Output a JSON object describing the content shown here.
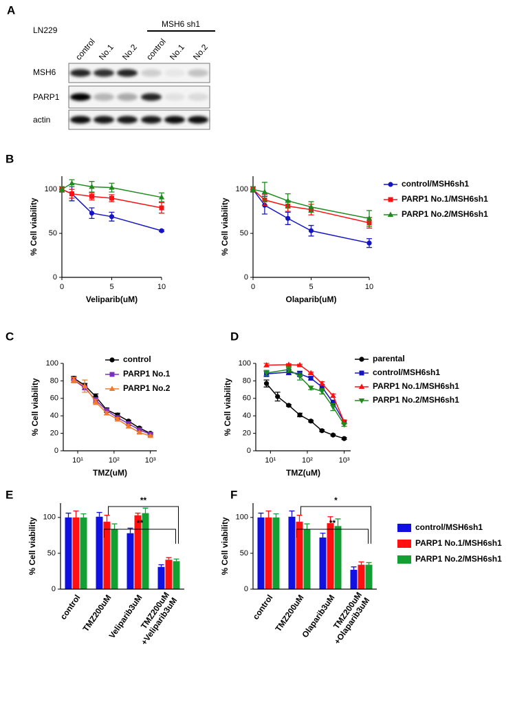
{
  "panel_labels": [
    "A",
    "B",
    "C",
    "D",
    "E",
    "F"
  ],
  "blot": {
    "cell_line": "LN229",
    "group_label": "MSH6 sh1",
    "lanes": [
      "control",
      "No.1",
      "No.2",
      "control",
      "No.1",
      "No.2"
    ],
    "rows": [
      "MSH6",
      "PARP1",
      "actin"
    ]
  },
  "chart_data": [
    {
      "type": "line",
      "x_label": "Veliparib(uM)",
      "y_label": "% Cell viability",
      "x": [
        0,
        1,
        3,
        5,
        10
      ],
      "xlim": [
        0,
        10
      ],
      "xticks": [
        0,
        5,
        10
      ],
      "ylim": [
        0,
        115
      ],
      "yticks": [
        0,
        50,
        100
      ],
      "legend": false,
      "series": [
        {
          "name": "control/MSH6sh1",
          "color": "#1515c0",
          "marker": "circle",
          "values": [
            100,
            95,
            73,
            69,
            53
          ],
          "error": [
            3,
            8,
            6,
            5,
            1
          ]
        },
        {
          "name": "PARP1 No.1/MSH6sh1",
          "color": "#ff1010",
          "marker": "square",
          "values": [
            100,
            95,
            92,
            90,
            79
          ],
          "error": [
            3,
            5,
            4,
            4,
            6
          ]
        },
        {
          "name": "PARP1 No.2/MSH6sh1",
          "color": "#1e8a1e",
          "marker": "triangle",
          "values": [
            100,
            107,
            103,
            102,
            91
          ],
          "error": [
            3,
            4,
            6,
            5,
            5
          ]
        }
      ]
    },
    {
      "type": "line",
      "x_label": "Olaparib(uM)",
      "y_label": "% Cell viability",
      "x": [
        0,
        1,
        3,
        5,
        10
      ],
      "xlim": [
        0,
        10
      ],
      "xticks": [
        0,
        5,
        10
      ],
      "ylim": [
        0,
        115
      ],
      "yticks": [
        0,
        50,
        100
      ],
      "legend": "right",
      "series": [
        {
          "name": "control/MSH6sh1",
          "color": "#1515c0",
          "marker": "circle",
          "values": [
            100,
            82,
            67,
            53,
            39
          ],
          "error": [
            3,
            10,
            7,
            6,
            5
          ]
        },
        {
          "name": "PARP1 No.1/MSH6sh1",
          "color": "#ff1010",
          "marker": "square",
          "values": [
            100,
            88,
            81,
            77,
            62
          ],
          "error": [
            3,
            6,
            6,
            6,
            6
          ]
        },
        {
          "name": "PARP1 No.2/MSH6sh1",
          "color": "#1e8a1e",
          "marker": "triangle",
          "values": [
            100,
            97,
            87,
            80,
            67
          ],
          "error": [
            3,
            11,
            8,
            6,
            9
          ]
        }
      ]
    },
    {
      "type": "line",
      "x_label": "TMZ(uM)",
      "y_label": "% Cell viability",
      "xscale": "log",
      "x": [
        7.8,
        15.6,
        31.3,
        62.5,
        125,
        250,
        500,
        1000
      ],
      "xlim": [
        4,
        1500
      ],
      "xticks": [
        {
          "value": 10,
          "label": "10¹"
        },
        {
          "value": 100,
          "label": "10²"
        },
        {
          "value": 1000,
          "label": "10³"
        }
      ],
      "ylim": [
        0,
        100
      ],
      "yticks": [
        0,
        20,
        40,
        60,
        80,
        100
      ],
      "legend": "upper right",
      "series": [
        {
          "name": "control",
          "color": "#000000",
          "marker": "circle",
          "values": [
            83,
            75,
            62,
            47,
            41,
            34,
            26,
            20
          ],
          "error": [
            2,
            2,
            3,
            2,
            2,
            1,
            1,
            1
          ]
        },
        {
          "name": "PARP1 No.1",
          "color": "#7b2fbf",
          "marker": "square",
          "values": [
            81,
            72,
            58,
            46,
            38,
            31,
            24,
            19
          ],
          "error": [
            3,
            2,
            3,
            2,
            2,
            2,
            1,
            1
          ]
        },
        {
          "name": "PARP1 No.2",
          "color": "#f47a2a",
          "marker": "triangle",
          "values": [
            81,
            74,
            56,
            43,
            36,
            28,
            21,
            17
          ],
          "error": [
            3,
            7,
            3,
            2,
            2,
            2,
            1,
            1
          ]
        }
      ]
    },
    {
      "type": "line",
      "x_label": "TMZ(uM)",
      "y_label": "% Cell viability",
      "xscale": "log",
      "x": [
        7.8,
        15.6,
        31.3,
        62.5,
        125,
        250,
        500,
        1000
      ],
      "xlim": [
        4,
        1500
      ],
      "xticks": [
        {
          "value": 10,
          "label": "10¹"
        },
        {
          "value": 100,
          "label": "10²"
        },
        {
          "value": 1000,
          "label": "10³"
        }
      ],
      "ylim": [
        0,
        100
      ],
      "yticks": [
        0,
        20,
        40,
        60,
        80,
        100
      ],
      "legend": "right",
      "series": [
        {
          "name": "parental",
          "color": "#000000",
          "marker": "circle",
          "values": [
            77,
            62,
            52,
            41,
            34,
            23,
            18,
            14
          ],
          "error": [
            4,
            5,
            1,
            2,
            1,
            1,
            1,
            1
          ]
        },
        {
          "name": "control/MSH6sh1",
          "color": "#1515c0",
          "marker": "square",
          "x": [
            7.8,
            31.3,
            62.5,
            125,
            250,
            500,
            1000
          ],
          "values": [
            88,
            90,
            88,
            83,
            73,
            55,
            33
          ],
          "error": [
            3,
            3,
            3,
            2,
            3,
            3,
            2
          ]
        },
        {
          "name": "PARP1 No.1/MSH6sh1",
          "color": "#ff1010",
          "marker": "triangle",
          "x": [
            7.8,
            31.3,
            62.5,
            125,
            250,
            500,
            1000
          ],
          "values": [
            98,
            98.5,
            98,
            89,
            77,
            63,
            33
          ],
          "error": [
            2,
            1,
            1,
            1,
            2,
            2,
            2
          ]
        },
        {
          "name": "PARP1 No.2/MSH6sh1",
          "color": "#1e8a1e",
          "marker": "triangle-down",
          "x": [
            7.8,
            31.3,
            62.5,
            125,
            250,
            500,
            1000
          ],
          "values": [
            89,
            93,
            85,
            72,
            68,
            50,
            30
          ],
          "error": [
            3,
            3,
            4,
            2,
            3,
            4,
            2
          ]
        }
      ]
    },
    {
      "type": "bar",
      "y_label": "% Cell viability",
      "categories": [
        "control",
        "TMZ200uM",
        "Veliparib3uM",
        [
          "TMZ200uM",
          "+Veliparib3uM"
        ]
      ],
      "ylim": [
        0,
        120
      ],
      "yticks": [
        0,
        50,
        100
      ],
      "legend": false,
      "annotations": [
        "**",
        "**"
      ],
      "series": [
        {
          "name": "control/MSH6sh1",
          "color": "#1010e0",
          "values": [
            100,
            101,
            78,
            31
          ],
          "error": [
            6,
            6,
            7,
            3
          ]
        },
        {
          "name": "PARP1 No.1/MSH6sh1",
          "color": "#ff1010",
          "values": [
            100,
            94,
            103,
            41
          ],
          "error": [
            9,
            9,
            3,
            3
          ]
        },
        {
          "name": "PARP1 No.2/MSH6sh1",
          "color": "#12a032",
          "values": [
            100,
            84,
            106,
            39
          ],
          "error": [
            5,
            7,
            7,
            3
          ]
        }
      ]
    },
    {
      "type": "bar",
      "y_label": "% Cell viability",
      "categories": [
        "control",
        "TMZ200uM",
        "Olaparib3uM",
        [
          "TMZ200uM",
          "+Olaparib3uM"
        ]
      ],
      "ylim": [
        0,
        120
      ],
      "yticks": [
        0,
        50,
        100
      ],
      "legend": "right",
      "annotations": [
        "*",
        "**"
      ],
      "series": [
        {
          "name": "control/MSH6sh1",
          "color": "#1010e0",
          "values": [
            100,
            101,
            72,
            27
          ],
          "error": [
            6,
            8,
            6,
            4
          ]
        },
        {
          "name": "PARP1 No.1/MSH6sh1",
          "color": "#ff1010",
          "values": [
            100,
            94,
            92,
            34
          ],
          "error": [
            9,
            9,
            9,
            4
          ]
        },
        {
          "name": "PARP1 No.2/MSH6sh1",
          "color": "#12a032",
          "values": [
            100,
            84,
            88,
            34
          ],
          "error": [
            5,
            7,
            10,
            3
          ]
        }
      ]
    }
  ]
}
